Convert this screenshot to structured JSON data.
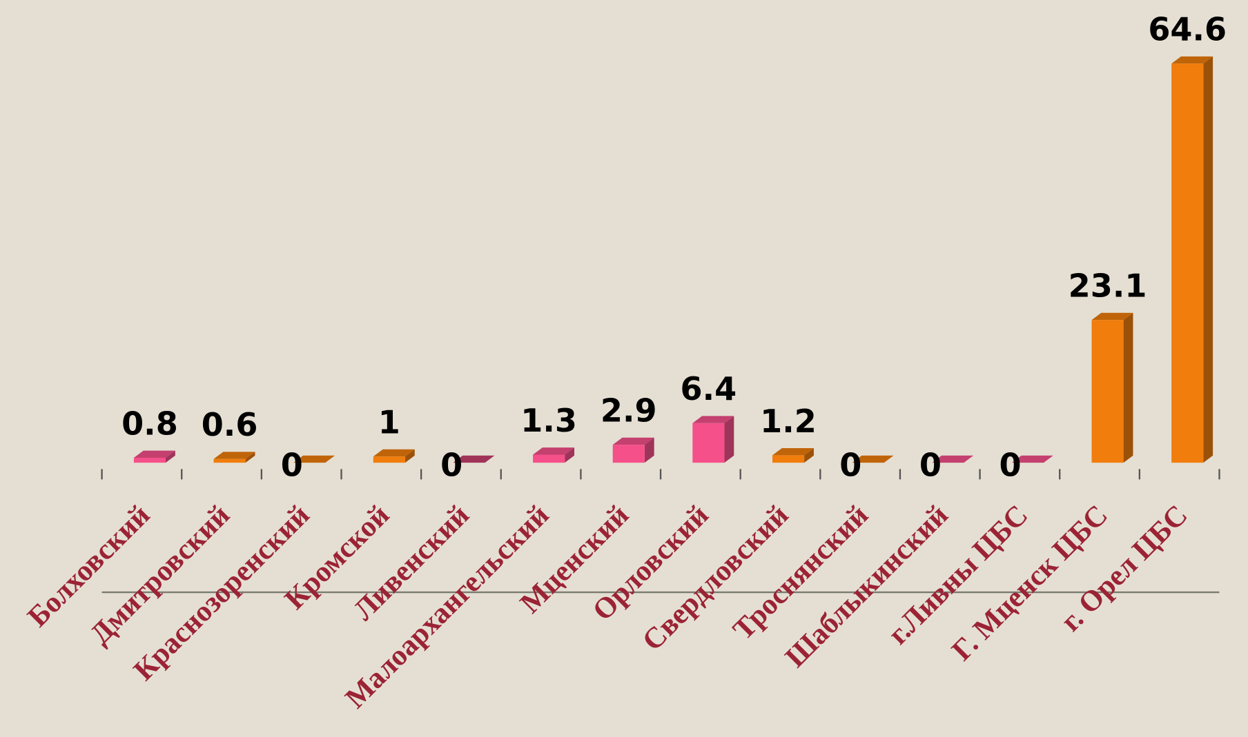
{
  "chart_data": {
    "type": "bar3d",
    "categories": [
      "Болховский",
      "Дмитровский",
      "Краснозоренский",
      "Кромской",
      "Ливенский",
      "Малоархангельский",
      "Мценский",
      "Орловский",
      "Свердловский",
      "Троснянский",
      "Шаблыкинский",
      "г.Ливны ЦБС",
      "Г. Мценск ЦБС",
      "г. Орел ЦБС"
    ],
    "values": [
      0.8,
      0.6,
      0,
      1,
      0,
      1.3,
      2.9,
      6.4,
      1.2,
      0,
      0,
      0,
      23.1,
      64.6
    ],
    "colors": [
      "#f5508a",
      "#f07d0c",
      "#f07d0c",
      "#f07d0c",
      "#c8406e",
      "#f5508a",
      "#f5508a",
      "#f5508a",
      "#f07d0c",
      "#f07d0c",
      "#f5508a",
      "#f5508a",
      "#f07d0c",
      "#f07d0c"
    ]
  }
}
